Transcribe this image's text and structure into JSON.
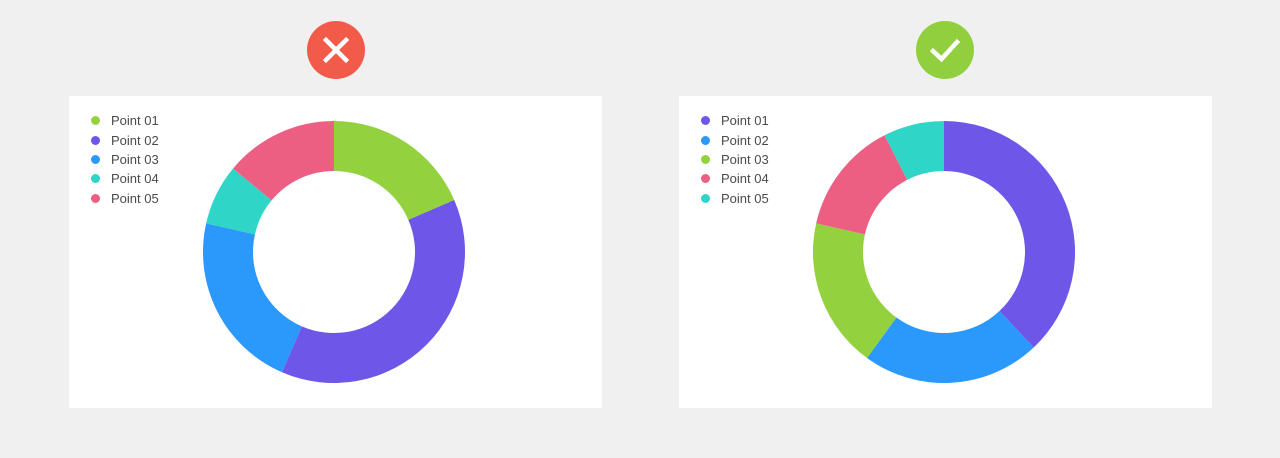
{
  "charts": [
    {
      "status": "wrong",
      "badge_color": "#f25a4a",
      "badge_icon": "close-icon",
      "chart_data": {
        "type": "pie",
        "variant": "donut",
        "start_angle_deg": 0,
        "direction": "clockwise",
        "categories": [
          "Point 01",
          "Point 02",
          "Point 03",
          "Point 04",
          "Point 05"
        ],
        "values": [
          18.5,
          38,
          22,
          7.5,
          14
        ],
        "colors": [
          "#93d13f",
          "#6e57e8",
          "#2b98fb",
          "#2fd5c7",
          "#ec5f83"
        ],
        "slice_order": [
          0,
          1,
          2,
          3,
          4
        ],
        "legend": "top-left"
      }
    },
    {
      "status": "right",
      "badge_color": "#92cf3f",
      "badge_icon": "check-icon",
      "chart_data": {
        "type": "pie",
        "variant": "donut",
        "start_angle_deg": 0,
        "direction": "clockwise",
        "categories": [
          "Point 01",
          "Point 02",
          "Point 03",
          "Point 04",
          "Point 05"
        ],
        "values": [
          38,
          22,
          18.5,
          14,
          7.5
        ],
        "colors": [
          "#6e57e8",
          "#2b98fb",
          "#93d13f",
          "#ec5f83",
          "#2fd5c7"
        ],
        "slice_order": [
          0,
          1,
          2,
          3,
          4
        ],
        "legend": "top-left"
      }
    }
  ]
}
